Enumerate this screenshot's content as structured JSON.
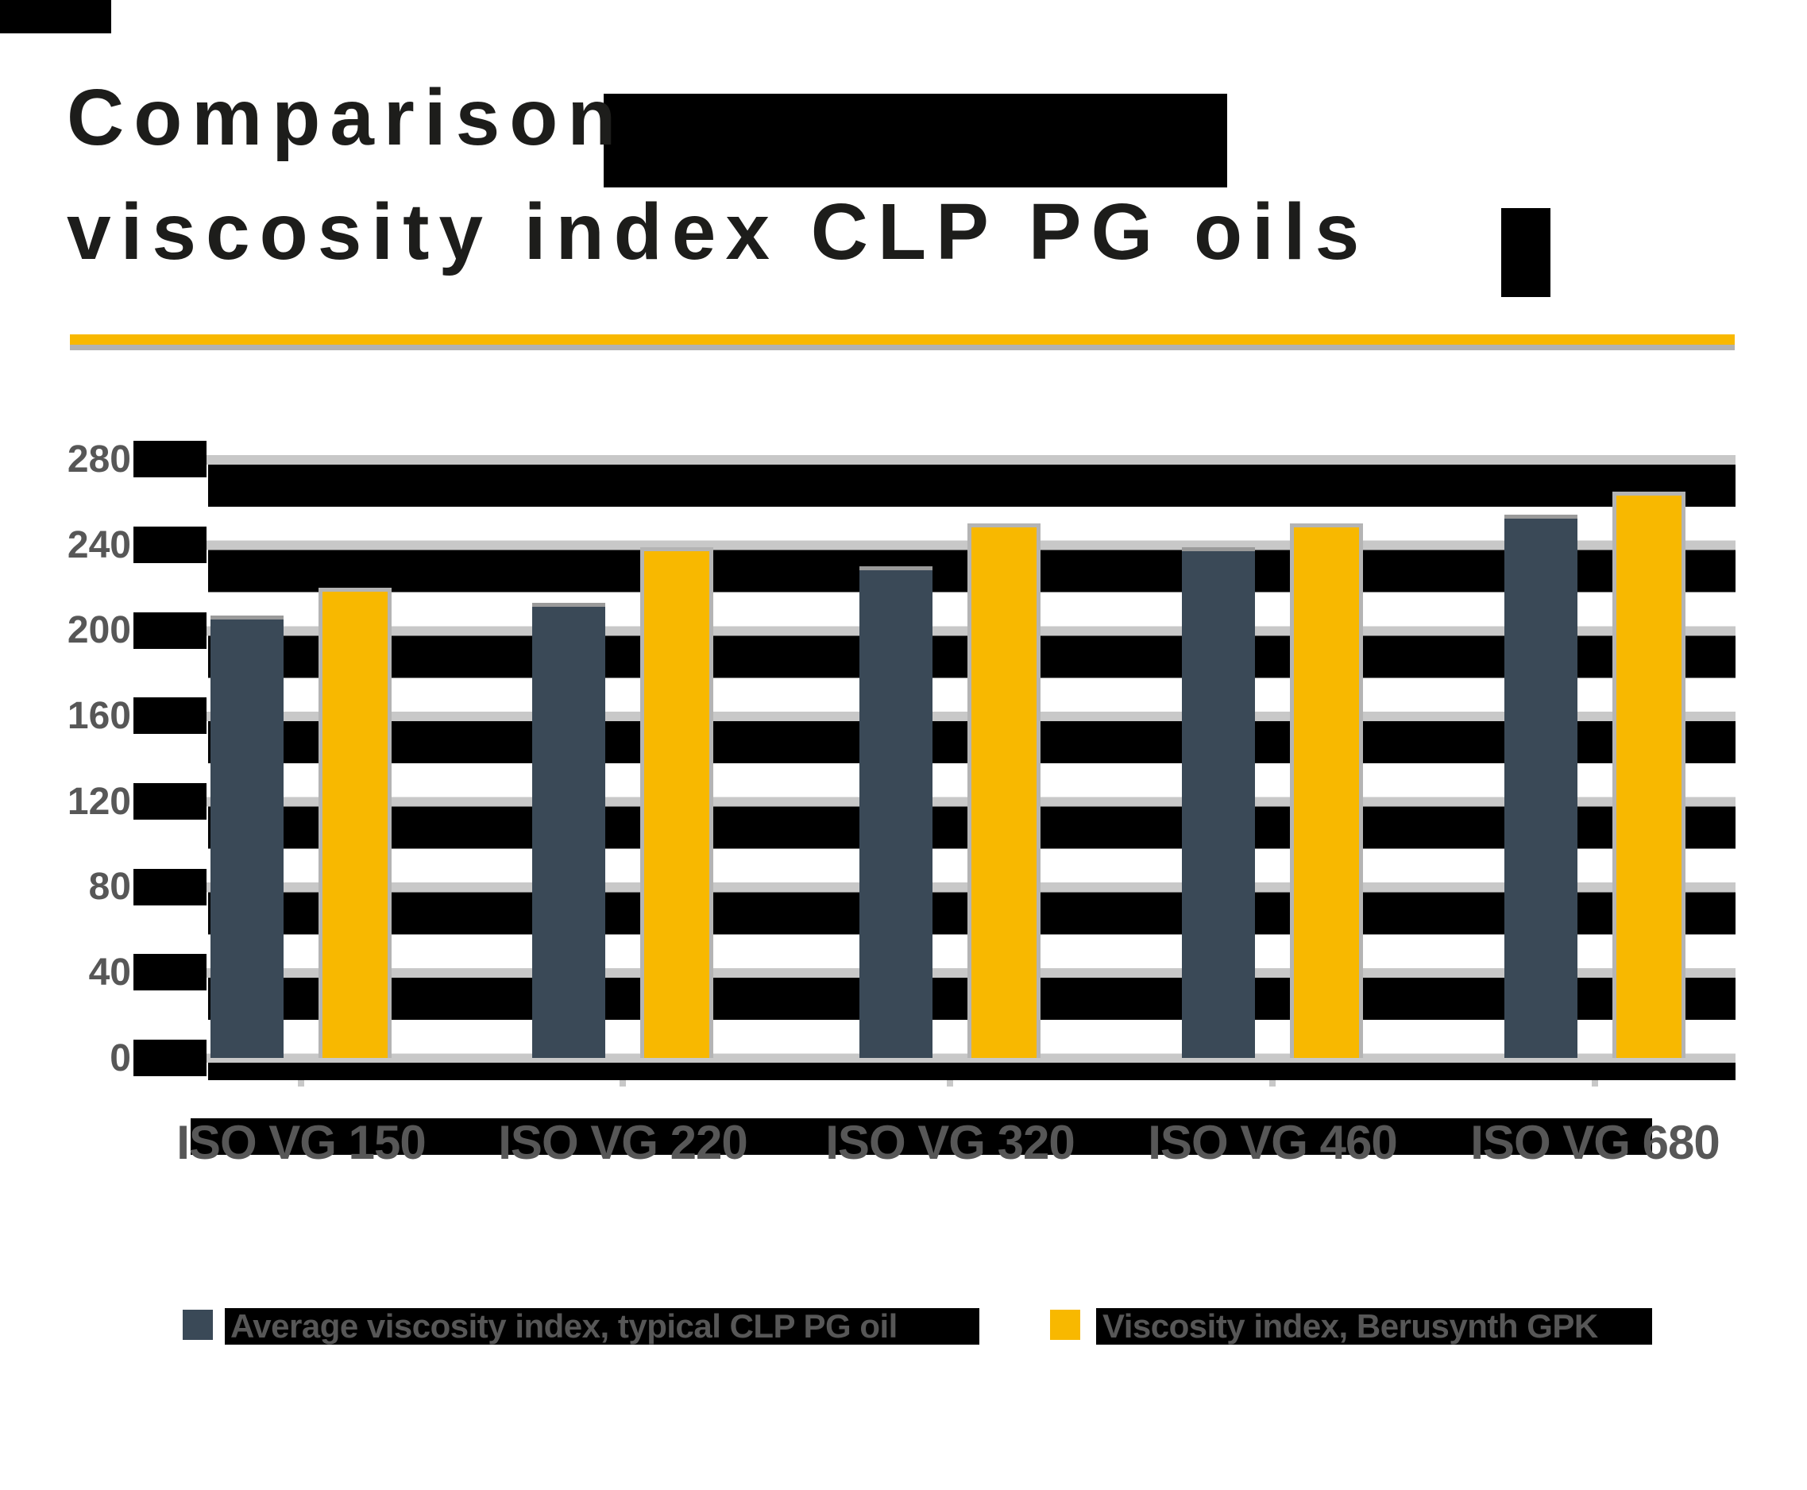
{
  "title": {
    "line1": "Comparison",
    "line2": "viscosity index CLP PG oils"
  },
  "chart_data": {
    "type": "bar",
    "title": "Comparison viscosity index CLP PG oils",
    "categories": [
      "ISO VG 150",
      "ISO VG 220",
      "ISO VG 320",
      "ISO VG 460",
      "ISO VG 680"
    ],
    "series": [
      {
        "name": "Average viscosity index, typical CLP PG oil",
        "color": "#3a4957",
        "values": [
          207,
          213,
          230,
          239,
          254
        ]
      },
      {
        "name": "Viscosity index, Berusynth GPK",
        "color": "#f8b800",
        "values": [
          220,
          239,
          250,
          250,
          265
        ]
      }
    ],
    "xlabel": "",
    "ylabel": "",
    "ylim": [
      0,
      280
    ],
    "yticks": [
      0,
      40,
      80,
      120,
      160,
      200,
      240,
      280
    ],
    "grid": true,
    "legend_position": "bottom"
  },
  "colors": {
    "bar_yellow": "#f8b800",
    "bar_slate": "#3a4957",
    "gridline": "#c8c8c8",
    "axis_label": "#575757",
    "title_text": "#1d1d1b",
    "separator_yellow": "#f8b800",
    "separator_gray": "#b2b2b2",
    "bar_cap": "#b4b4b4",
    "glitch_black": "#000000"
  }
}
